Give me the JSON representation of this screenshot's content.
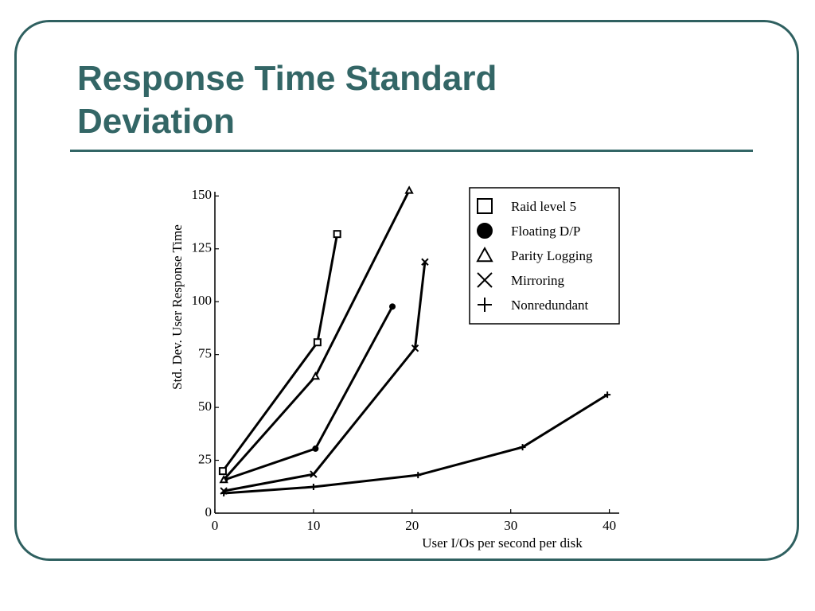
{
  "chart_data": {
    "type": "line",
    "title": "Response Time Standard Deviation",
    "xlabel": "User I/Os per second per disk",
    "ylabel": "Std. Dev. User Response Time",
    "xlim": [
      0,
      41
    ],
    "ylim": [
      0,
      152
    ],
    "xticks": [
      0,
      10,
      20,
      30,
      40
    ],
    "yticks": [
      0,
      25,
      50,
      75,
      100,
      125,
      150
    ],
    "legend": "upper right",
    "series": [
      {
        "name": "Raid level 5",
        "color": "#000000",
        "marker": "square",
        "x": [
          0.8,
          10.4,
          12.4
        ],
        "values": [
          19.9,
          80.8,
          132
        ]
      },
      {
        "name": "Floating D/P",
        "color": "#000000",
        "marker": "circle",
        "x": [
          1,
          10.2,
          18
        ],
        "values": [
          15.8,
          30.5,
          97.7
        ]
      },
      {
        "name": "Parity Logging",
        "color": "#000000",
        "marker": "triangle",
        "x": [
          0.9,
          10.2,
          19.7
        ],
        "values": [
          15.8,
          64.7,
          152.6
        ]
      },
      {
        "name": "Mirroring",
        "color": "#000000",
        "marker": "x",
        "x": [
          0.9,
          10,
          20.3,
          21.3
        ],
        "values": [
          10.5,
          18.4,
          78,
          118.8
        ]
      },
      {
        "name": "Nonredundant",
        "color": "#000000",
        "marker": "plus",
        "x": [
          0.9,
          10,
          20.6,
          31.2,
          39.8
        ],
        "values": [
          9.4,
          12.4,
          18,
          31.2,
          56
        ]
      }
    ]
  }
}
